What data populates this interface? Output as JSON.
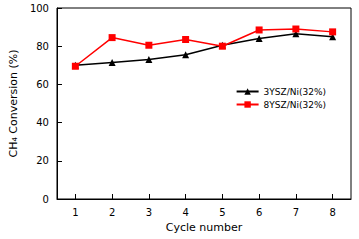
{
  "chart_data": {
    "type": "line",
    "x_label": "Cycle number",
    "y_label": "CH₄ Conversion (%)",
    "categories": [
      "1",
      "2",
      "3",
      "4",
      "5",
      "6",
      "7",
      "8"
    ],
    "series": [
      {
        "name": "3YSZ/Ni(32%)",
        "color": "#000000",
        "marker": "triangle",
        "line_style": "solid",
        "values": [
          70,
          71.5,
          73,
          75.5,
          80.5,
          84,
          86.5,
          85
        ]
      },
      {
        "name": "8YSZ/Ni(32%)",
        "color": "#ff0000",
        "marker": "square",
        "line_style": "solid",
        "values": [
          69.5,
          84.5,
          80.5,
          83.5,
          80,
          88.5,
          89,
          87.5
        ]
      }
    ],
    "ylim": [
      0,
      100
    ],
    "yticks": [
      0,
      20,
      40,
      60,
      80,
      100
    ],
    "grid": false,
    "legend": "right"
  }
}
